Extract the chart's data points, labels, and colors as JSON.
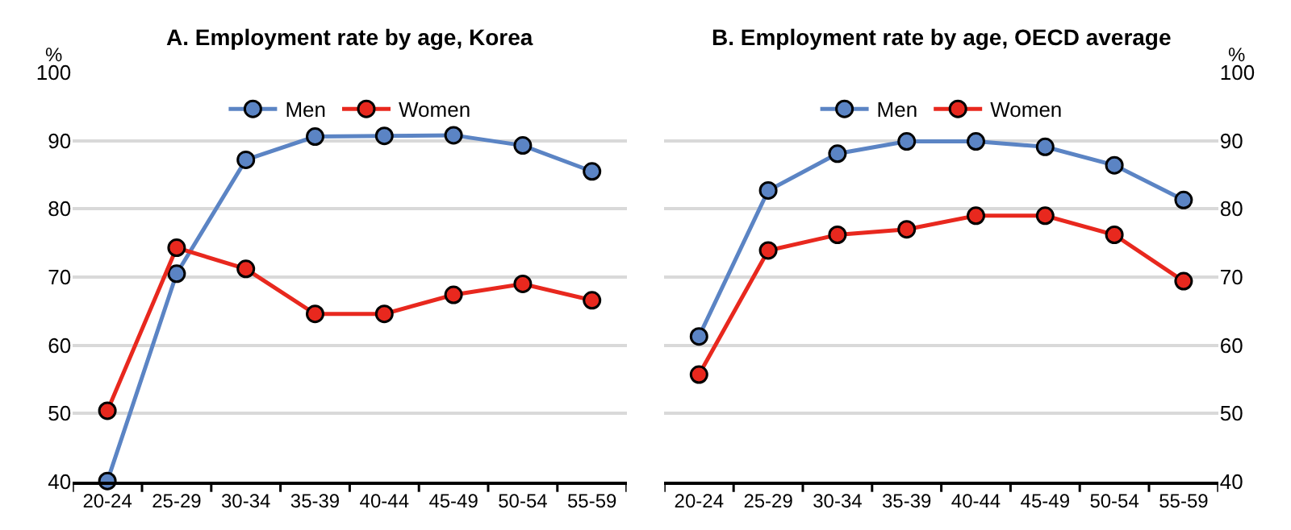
{
  "chart_data": [
    {
      "type": "line",
      "title": "A. Employment rate by age, Korea",
      "ylabel": "%",
      "categories": [
        "20-24",
        "25-29",
        "30-34",
        "35-39",
        "40-44",
        "45-49",
        "50-54",
        "55-59"
      ],
      "series": [
        {
          "name": "Men",
          "color": "#5b84c4",
          "values": [
            40.1,
            70.5,
            87.2,
            90.6,
            90.7,
            90.8,
            89.3,
            85.5
          ]
        },
        {
          "name": "Women",
          "color": "#e8281e",
          "values": [
            50.4,
            74.3,
            71.2,
            64.6,
            64.6,
            67.4,
            69.0,
            66.6
          ]
        }
      ],
      "ylim": [
        40,
        100
      ],
      "yticks": [
        40,
        50,
        60,
        70,
        80,
        90,
        100
      ],
      "grid": "y",
      "legend": "top",
      "marker": "circle",
      "line_style": "solid"
    },
    {
      "type": "line",
      "title": "B. Employment rate by age, OECD average",
      "ylabel": "%",
      "categories": [
        "20-24",
        "25-29",
        "30-34",
        "35-39",
        "40-44",
        "45-49",
        "50-54",
        "55-59"
      ],
      "series": [
        {
          "name": "Men",
          "color": "#5b84c4",
          "values": [
            61.3,
            82.7,
            88.1,
            89.9,
            89.9,
            89.1,
            86.4,
            81.3
          ]
        },
        {
          "name": "Women",
          "color": "#e8281e",
          "values": [
            55.7,
            73.9,
            76.2,
            77.0,
            79.0,
            79.0,
            76.2,
            69.4
          ]
        }
      ],
      "ylim": [
        40,
        100
      ],
      "yticks": [
        40,
        50,
        60,
        70,
        80,
        90,
        100
      ],
      "grid": "y",
      "legend": "top",
      "marker": "circle",
      "line_style": "solid"
    }
  ]
}
